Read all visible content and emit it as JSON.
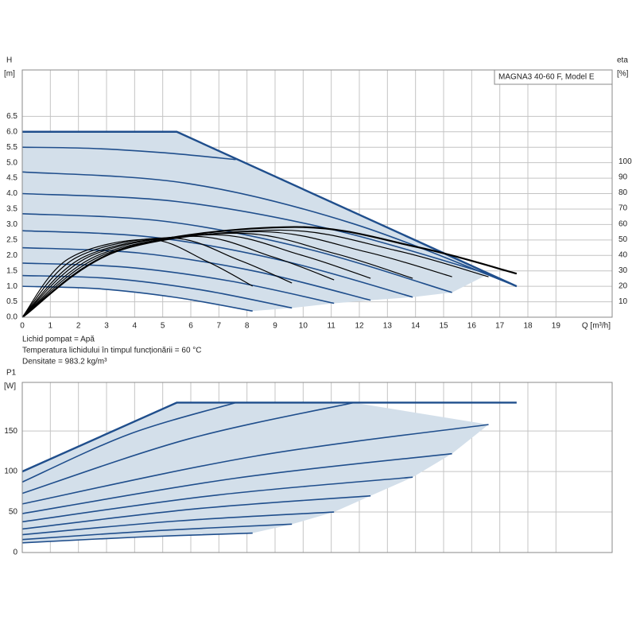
{
  "chart_data": [
    {
      "type": "line",
      "title": "MAGNA3 40-60 F, Model E",
      "y_label": "H",
      "y_unit": "[m]",
      "y2_label": "eta",
      "y2_unit": "[%]",
      "x_label": "Q [m³/h]",
      "notes": [
        "Lichid pompat = Apă",
        "Temperatura lichidului în timpul funcționării = 60 °C",
        "Densitate = 983.2 kg/m³"
      ],
      "xlim": [
        0,
        21
      ],
      "xticks": [
        0,
        1,
        2,
        3,
        4,
        5,
        6,
        7,
        8,
        9,
        10,
        11,
        12,
        13,
        14,
        15,
        16,
        17,
        18,
        19
      ],
      "ylim": [
        0,
        8
      ],
      "yticks": [
        {
          "value": 0,
          "label": "0.0"
        },
        {
          "value": 0.5,
          "label": "0.5"
        },
        {
          "value": 1,
          "label": "1.0"
        },
        {
          "value": 1.5,
          "label": "1.5"
        },
        {
          "value": 2,
          "label": "2.0"
        },
        {
          "value": 2.5,
          "label": "2.5"
        },
        {
          "value": 3,
          "label": "3.0"
        },
        {
          "value": 3.5,
          "label": "3.5"
        },
        {
          "value": 4,
          "label": "4.0"
        },
        {
          "value": 4.5,
          "label": "4.5"
        },
        {
          "value": 5,
          "label": "5.0"
        },
        {
          "value": 5.5,
          "label": "5.5"
        },
        {
          "value": 6,
          "label": "6.0"
        },
        {
          "value": 6.5,
          "label": "6.5"
        }
      ],
      "y2lim": [
        0,
        159
      ],
      "y2ticks": [
        10,
        20,
        30,
        40,
        50,
        60,
        70,
        80,
        90,
        100
      ],
      "grid": true,
      "fill_color": "#d3dfea",
      "curve_color": "#1f4e8c",
      "efficiency_color": "#000000",
      "limit": {
        "x": [
          0,
          5.5,
          17.6
        ],
        "values": [
          6.0,
          6.0,
          1.0
        ]
      },
      "series": [
        {
          "x": [
            0,
            2.53,
            5.07,
            7.6
          ],
          "values": [
            5.5,
            5.46,
            5.32,
            5.1
          ]
        },
        {
          "x": [
            0,
            5.87,
            11.73,
            17.6
          ],
          "values": [
            4.7,
            4.33,
            3.04,
            1.0
          ]
        },
        {
          "x": [
            0,
            5.53,
            11.07,
            16.6
          ],
          "values": [
            4.0,
            3.74,
            2.83,
            1.4
          ]
        },
        {
          "x": [
            0,
            5.1,
            10.2,
            15.3
          ],
          "values": [
            3.35,
            3.1,
            2.2,
            0.8
          ]
        },
        {
          "x": [
            0,
            4.63,
            9.27,
            13.9
          ],
          "values": [
            2.8,
            2.59,
            1.83,
            0.65
          ]
        },
        {
          "x": [
            0,
            4.13,
            8.27,
            12.4
          ],
          "values": [
            2.25,
            2.08,
            1.49,
            0.55
          ]
        },
        {
          "x": [
            0,
            3.7,
            7.4,
            11.1
          ],
          "values": [
            1.75,
            1.62,
            1.17,
            0.45
          ]
        },
        {
          "x": [
            0,
            3.2,
            6.4,
            9.6
          ],
          "values": [
            1.35,
            1.25,
            0.88,
            0.3
          ]
        },
        {
          "x": [
            0,
            2.73,
            5.47,
            8.2
          ],
          "values": [
            1.0,
            0.92,
            0.64,
            0.2
          ]
        }
      ],
      "efficiency": [
        {
          "axis": "y2",
          "x": [
            0,
            1.64,
            4.51,
            6.56,
            8.2
          ],
          "values": [
            0,
            37.5,
            50,
            36,
            20
          ]
        },
        {
          "axis": "y2",
          "x": [
            0,
            1.92,
            5.28,
            7.68,
            9.6
          ],
          "values": [
            0,
            38.3,
            51,
            37,
            22
          ]
        },
        {
          "axis": "y2",
          "x": [
            0,
            2.22,
            6.1,
            8.88,
            11.1
          ],
          "values": [
            0,
            39,
            52,
            39,
            24
          ]
        },
        {
          "axis": "y2",
          "x": [
            0,
            2.48,
            6.82,
            9.92,
            12.4
          ],
          "values": [
            0,
            39.8,
            53,
            40,
            25
          ]
        },
        {
          "axis": "y2",
          "x": [
            0,
            2.78,
            7.65,
            11.12,
            13.9
          ],
          "values": [
            0,
            40.5,
            54,
            41,
            25
          ]
        },
        {
          "axis": "y2",
          "x": [
            0,
            3.06,
            8.42,
            12.24,
            15.3
          ],
          "values": [
            0,
            41.3,
            55,
            42,
            26
          ]
        },
        {
          "axis": "y2",
          "x": [
            0,
            3.32,
            9.13,
            13.28,
            16.6
          ],
          "values": [
            0,
            42,
            56,
            43,
            26
          ]
        },
        {
          "axis": "y2",
          "x": [
            0,
            3.52,
            9.68,
            14.08,
            17.6
          ],
          "values": [
            0,
            43.5,
            58,
            45,
            28
          ]
        }
      ]
    },
    {
      "type": "line",
      "y_label": "P1",
      "y_unit": "[W]",
      "xlim": [
        0,
        21
      ],
      "ylim": [
        0,
        210
      ],
      "yticks": [
        0,
        50,
        100,
        150
      ],
      "grid": true,
      "fill_color": "#d3dfea",
      "curve_color": "#1f4e8c",
      "limit": {
        "x": [
          0,
          5.5,
          17.6
        ],
        "values": [
          100,
          185,
          185
        ]
      },
      "series": [
        {
          "x": [
            0,
            3.8,
            7.6
          ],
          "values": [
            87,
            146,
            185
          ]
        },
        {
          "x": [
            0,
            5.9,
            11.8
          ],
          "values": [
            73,
            140,
            185
          ]
        },
        {
          "x": [
            0,
            8.3,
            16.6
          ],
          "values": [
            60,
            119,
            158
          ]
        },
        {
          "x": [
            0,
            7.65,
            15.3
          ],
          "values": [
            48,
            92,
            122
          ]
        },
        {
          "x": [
            0,
            6.95,
            13.9
          ],
          "values": [
            38,
            71,
            93
          ]
        },
        {
          "x": [
            0,
            6.2,
            12.4
          ],
          "values": [
            29,
            54,
            70
          ]
        },
        {
          "x": [
            0,
            5.55,
            11.1
          ],
          "values": [
            22,
            39,
            50
          ]
        },
        {
          "x": [
            0,
            4.8,
            9.6
          ],
          "values": [
            16,
            27,
            35
          ]
        },
        {
          "x": [
            0,
            4.1,
            8.2
          ],
          "values": [
            12,
            19,
            24
          ]
        }
      ]
    }
  ]
}
